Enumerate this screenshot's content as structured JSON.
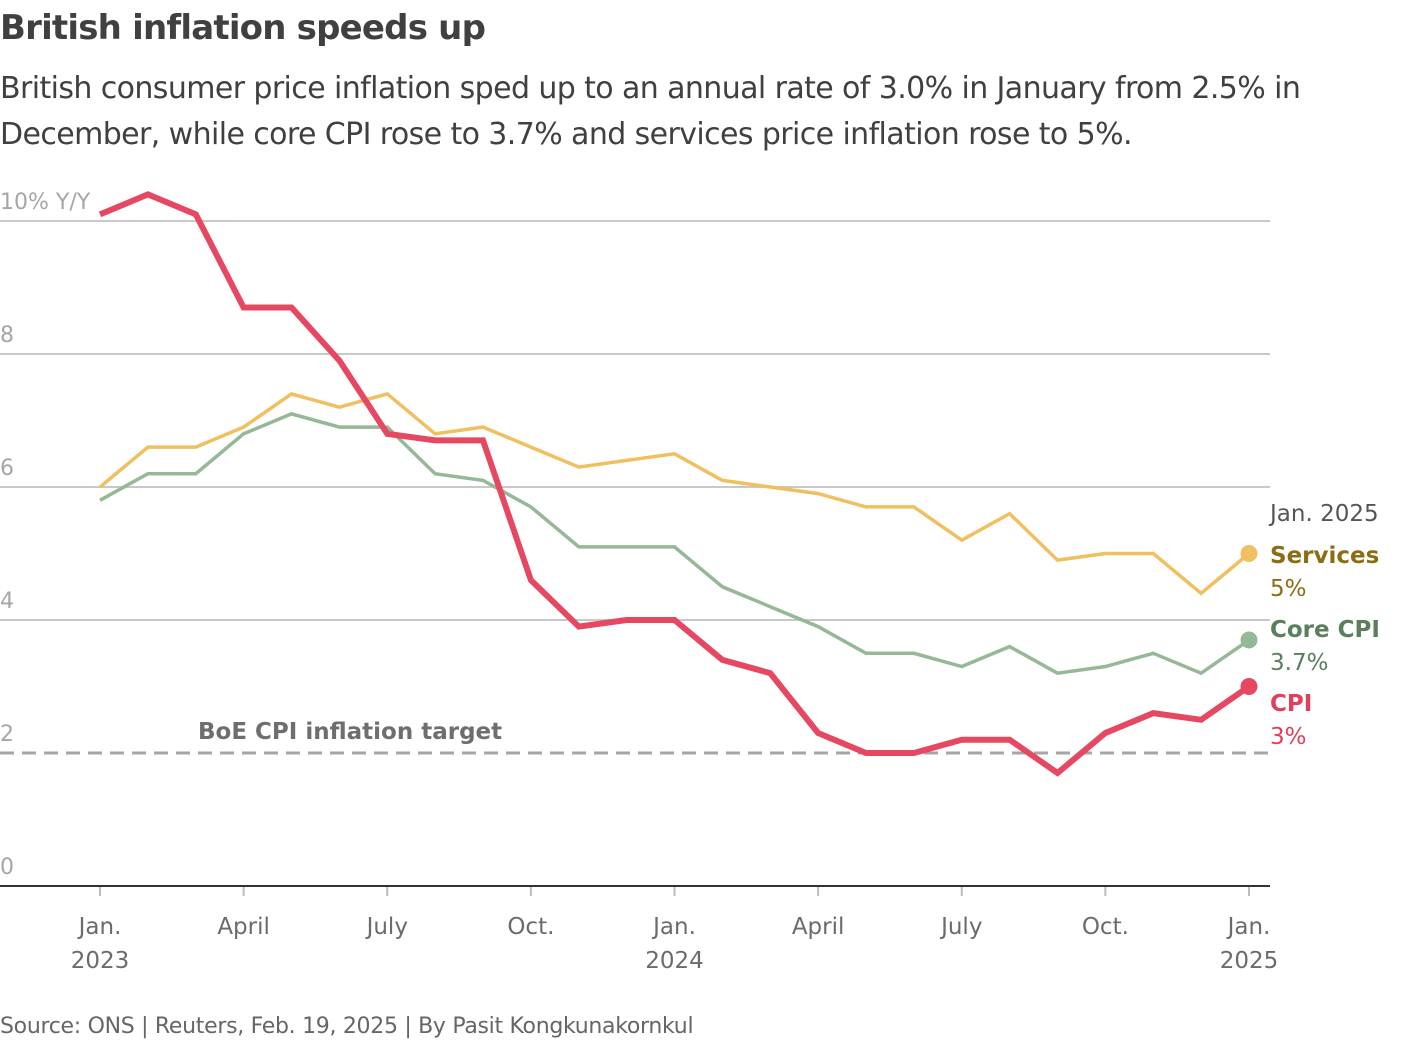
{
  "header": {
    "title": "British inflation speeds up",
    "subtitle": "British consumer price inflation sped up to an annual rate of 3.0% in January from 2.5% in December, while core CPI rose to 3.7% and services price inflation rose to 5%."
  },
  "footer": {
    "source": "Source: ONS | Reuters, Feb. 19, 2025 | By Pasit Kongkunakornkul"
  },
  "chart_data": {
    "type": "line",
    "title": "British inflation speeds up",
    "ylabel": "% Y/Y",
    "xlabel": "",
    "ylim": [
      0,
      10
    ],
    "grid": true,
    "y_ticks": [
      {
        "value": 10,
        "label": "10% Y/Y"
      },
      {
        "value": 8,
        "label": "8"
      },
      {
        "value": 6,
        "label": "6"
      },
      {
        "value": 4,
        "label": "4"
      },
      {
        "value": 2,
        "label": "2"
      },
      {
        "value": 0,
        "label": "0"
      }
    ],
    "x": [
      "2023-01",
      "2023-02",
      "2023-03",
      "2023-04",
      "2023-05",
      "2023-06",
      "2023-07",
      "2023-08",
      "2023-09",
      "2023-10",
      "2023-11",
      "2023-12",
      "2024-01",
      "2024-02",
      "2024-03",
      "2024-04",
      "2024-05",
      "2024-06",
      "2024-07",
      "2024-08",
      "2024-09",
      "2024-10",
      "2024-11",
      "2024-12",
      "2025-01"
    ],
    "x_ticks": [
      {
        "index": 0,
        "label": "Jan.",
        "sublabel": "2023"
      },
      {
        "index": 3,
        "label": "April",
        "sublabel": ""
      },
      {
        "index": 6,
        "label": "July",
        "sublabel": ""
      },
      {
        "index": 9,
        "label": "Oct.",
        "sublabel": ""
      },
      {
        "index": 12,
        "label": "Jan.",
        "sublabel": "2024"
      },
      {
        "index": 15,
        "label": "April",
        "sublabel": ""
      },
      {
        "index": 18,
        "label": "July",
        "sublabel": ""
      },
      {
        "index": 21,
        "label": "Oct.",
        "sublabel": ""
      },
      {
        "index": 24,
        "label": "Jan.",
        "sublabel": "2025"
      }
    ],
    "series": [
      {
        "name": "Services",
        "color": "#f0c060",
        "label_color": "#8c6d14",
        "end_label": "5%",
        "values": [
          6.0,
          6.6,
          6.6,
          6.9,
          7.4,
          7.2,
          7.4,
          6.8,
          6.9,
          6.6,
          6.3,
          6.4,
          6.5,
          6.1,
          6.0,
          5.9,
          5.7,
          5.7,
          5.2,
          5.6,
          4.9,
          5.0,
          5.0,
          4.4,
          5.0
        ]
      },
      {
        "name": "Core CPI",
        "color": "#95b896",
        "label_color": "#5a7f5c",
        "end_label": "3.7%",
        "values": [
          5.8,
          6.2,
          6.2,
          6.8,
          7.1,
          6.9,
          6.9,
          6.2,
          6.1,
          5.7,
          5.1,
          5.1,
          5.1,
          4.5,
          4.2,
          3.9,
          3.5,
          3.5,
          3.3,
          3.6,
          3.2,
          3.3,
          3.5,
          3.2,
          3.7
        ]
      },
      {
        "name": "CPI",
        "color": "#e64862",
        "label_color": "#e0405a",
        "end_label": "3%",
        "values": [
          10.1,
          10.4,
          10.1,
          8.7,
          8.7,
          7.9,
          6.8,
          6.7,
          6.7,
          4.6,
          3.9,
          4.0,
          4.0,
          3.4,
          3.2,
          2.3,
          2.0,
          2.0,
          2.2,
          2.2,
          1.7,
          2.3,
          2.6,
          2.5,
          3.0
        ]
      }
    ],
    "reference_line": {
      "value": 2,
      "label": "BoE CPI inflation target",
      "style": "dashed",
      "color": "#a6a6a6"
    },
    "end_label_header": "Jan. 2025",
    "legend": "end-of-line labels, right"
  }
}
